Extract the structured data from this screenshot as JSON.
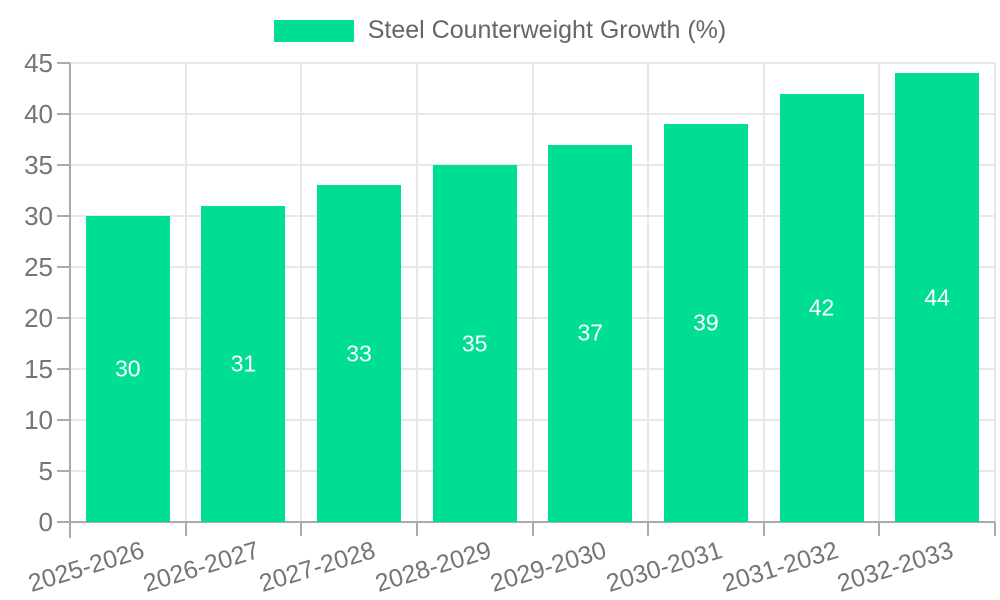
{
  "chart_data": {
    "type": "bar",
    "series_name": "Steel Counterweight Growth (%)",
    "categories": [
      "2025-2026",
      "2026-2027",
      "2027-2028",
      "2028-2029",
      "2029-2030",
      "2030-2031",
      "2031-2032",
      "2032-2033"
    ],
    "values": [
      30,
      31,
      33,
      35,
      37,
      39,
      42,
      44
    ],
    "bar_value_labels": [
      "30",
      "31",
      "33",
      "35",
      "37",
      "39",
      "42",
      "44"
    ],
    "ytick_labels": [
      "0",
      "5",
      "10",
      "15",
      "20",
      "25",
      "30",
      "35",
      "40",
      "45"
    ],
    "ylim": [
      0,
      45
    ],
    "ytick_step": 5,
    "grid": true,
    "legend_position": "top",
    "xlabel": "",
    "ylabel": "",
    "colors": {
      "bar": "#00DE95",
      "bar_label_text": "#ffffff",
      "grid_line": "#e7e7e7",
      "axis_line": "#ababab",
      "tick_text": "#757575",
      "legend_text": "#666666",
      "background": "#ffffff"
    }
  }
}
